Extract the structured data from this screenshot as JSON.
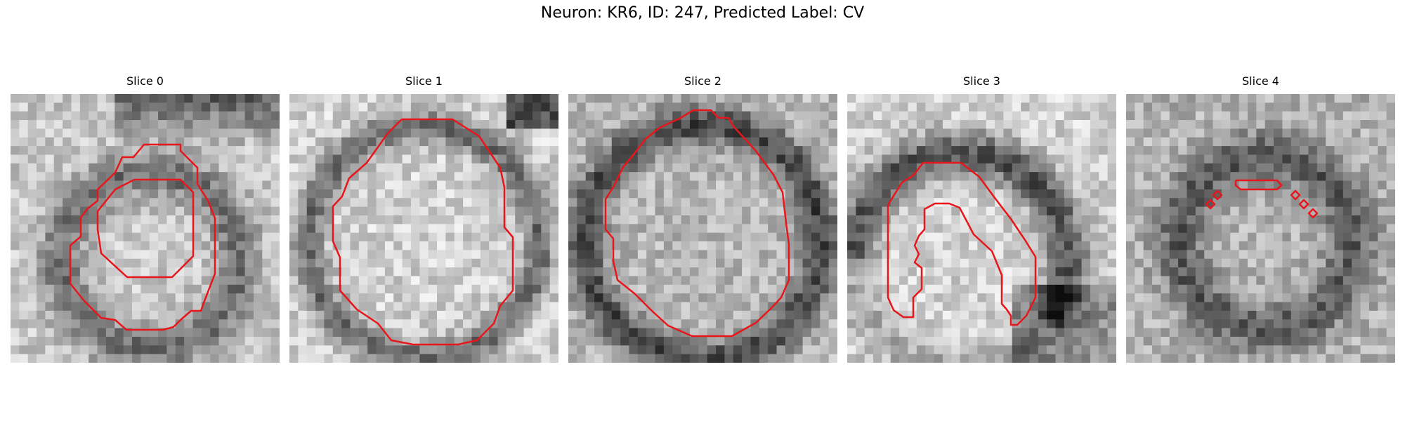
{
  "figure": {
    "title": "Neuron: KR6, ID: 247, Predicted Label: CV",
    "contour_color": "#e8161b"
  },
  "panels": [
    {
      "title": "Slice 0",
      "seed": 11,
      "pattern": "ring-small"
    },
    {
      "title": "Slice 1",
      "seed": 23,
      "pattern": "ring-large"
    },
    {
      "title": "Slice 2",
      "seed": 37,
      "pattern": "ring-large-dark"
    },
    {
      "title": "Slice 3",
      "seed": 51,
      "pattern": "arc"
    },
    {
      "title": "Slice 4",
      "seed": 67,
      "pattern": "ring-faint"
    }
  ]
}
